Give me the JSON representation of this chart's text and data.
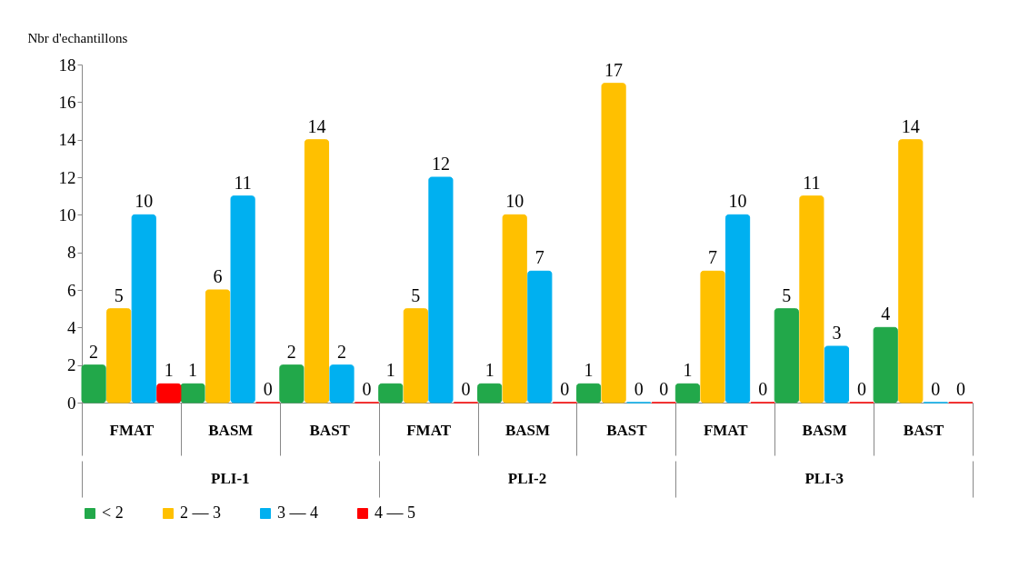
{
  "chart_data": {
    "type": "bar",
    "ylabel": "Nbr d'echantillons",
    "categories": [
      "FMAT",
      "BASM",
      "BAST",
      "FMAT",
      "BASM",
      "BAST",
      "FMAT",
      "BASM",
      "BAST"
    ],
    "annotations": [
      "PLI-1",
      "PLI-2",
      "PLI-3"
    ],
    "series": [
      {
        "name": "< 2",
        "color": "#22a84a",
        "values": [
          2,
          1,
          2,
          1,
          1,
          1,
          1,
          5,
          4
        ]
      },
      {
        "name": "2 — 3",
        "color": "#ffc000",
        "values": [
          5,
          6,
          14,
          5,
          10,
          17,
          7,
          11,
          14
        ]
      },
      {
        "name": "3 — 4",
        "color": "#00b0f0",
        "values": [
          10,
          11,
          2,
          12,
          7,
          0,
          10,
          3,
          0
        ]
      },
      {
        "name": "4 — 5",
        "color": "#ff0000",
        "values": [
          1,
          0,
          0,
          0,
          0,
          0,
          0,
          0,
          0
        ]
      }
    ],
    "ylim": [
      0,
      18
    ],
    "yticks": [
      0,
      2,
      4,
      6,
      8,
      10,
      12,
      14,
      16,
      18
    ],
    "grid": false,
    "legend": "bottom",
    "data_labels": true
  }
}
